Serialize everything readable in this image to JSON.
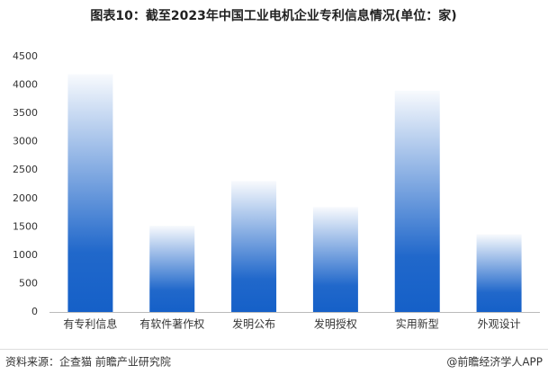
{
  "chart_data": {
    "type": "bar",
    "title": "图表10：截至2023年中国工业电机企业专利信息情况(单位：家)",
    "categories": [
      "有专利信息",
      "有软件著作权",
      "发明公布",
      "发明授权",
      "实用新型",
      "外观设计"
    ],
    "values": [
      4190,
      1520,
      2310,
      1850,
      3900,
      1370
    ],
    "color": "#1560c8",
    "ylim": [
      0,
      4500
    ],
    "yticks": [
      0,
      500,
      1000,
      1500,
      2000,
      2500,
      3000,
      3500,
      4000,
      4500
    ],
    "grid": false,
    "source": "资料来源：企查猫 前瞻产业研究院",
    "credit": "@前瞻经济学人APP"
  }
}
